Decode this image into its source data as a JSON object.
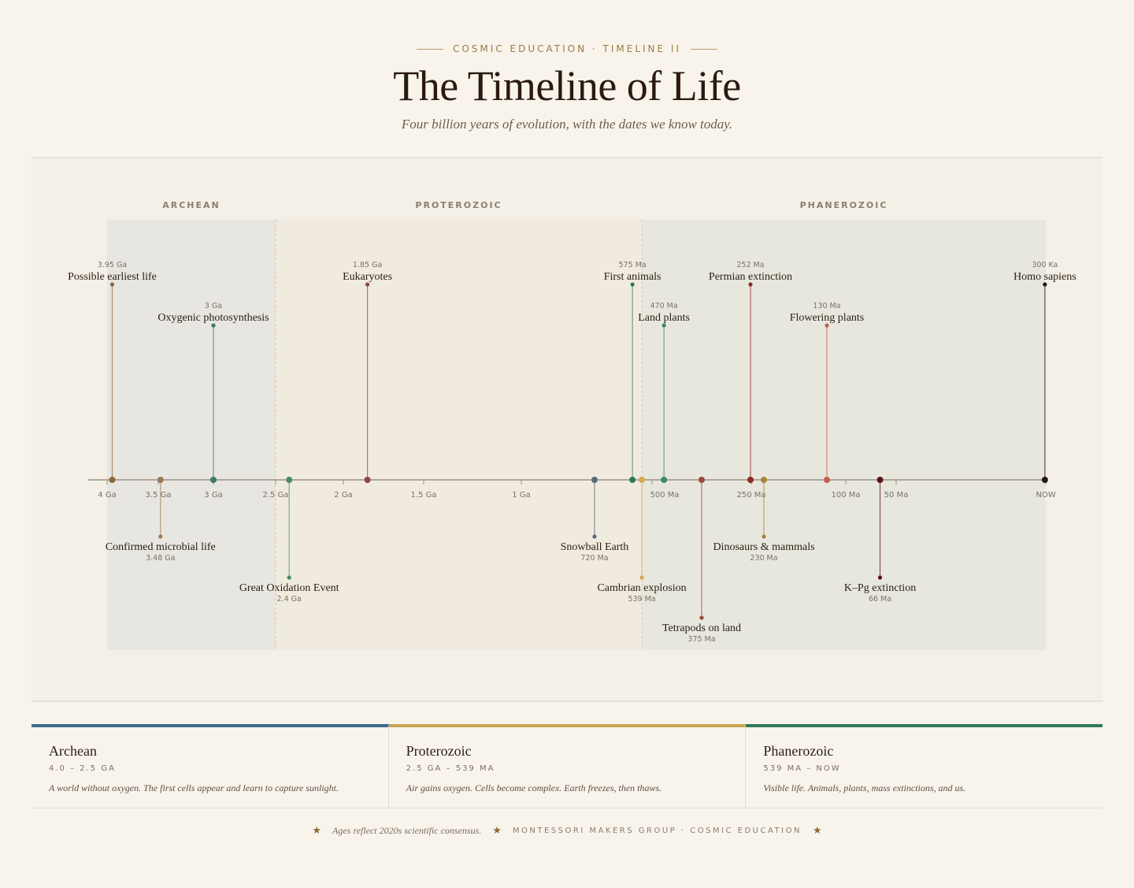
{
  "header": {
    "eyebrow": "COSMIC EDUCATION · TIMELINE II",
    "title": "The Timeline of Life",
    "subtitle": "Four billion years of evolution, with the dates we know today."
  },
  "chart_data": {
    "type": "timeline",
    "axis": {
      "unit": "years before present",
      "piecewise_scale": "4.0 Ga to 0.8 Ga linear; 0.8 Ga to 0 linear (expanded)",
      "ticks": [
        {
          "label": "4 Ga",
          "age": 4000
        },
        {
          "label": "3.5 Ga",
          "age": 3500
        },
        {
          "label": "3 Ga",
          "age": 3000
        },
        {
          "label": "2.5 Ga",
          "age": 2500
        },
        {
          "label": "2 Ga",
          "age": 2000
        },
        {
          "label": "1.5 Ga",
          "age": 1500
        },
        {
          "label": "1 Ga",
          "age": 1000
        },
        {
          "label": "500 Ma",
          "age": 500
        },
        {
          "label": "250 Ma",
          "age": 250
        },
        {
          "label": "100 Ma",
          "age": 100
        },
        {
          "label": "50 Ma",
          "age": 50
        },
        {
          "label": "NOW",
          "age": 0
        }
      ]
    },
    "eras": [
      {
        "name": "ARCHEAN",
        "from": 4000,
        "to": 2500,
        "color": "#e8e6e0"
      },
      {
        "name": "PROTEROZOIC",
        "from": 2500,
        "to": 539,
        "color": "#f1ebdf"
      },
      {
        "name": "PHANEROZOIC",
        "from": 539,
        "to": 0,
        "color": "#e8e7de"
      }
    ],
    "events": [
      {
        "name": "Possible earliest life",
        "date": "3.95 Ga",
        "age": 3950,
        "side": "above",
        "tier": 0,
        "color": "#8a6a3a"
      },
      {
        "name": "Confirmed microbial life",
        "date": "3.48 Ga",
        "age": 3480,
        "side": "below",
        "tier": 0,
        "color": "#9a7a56"
      },
      {
        "name": "Oxygenic photosynthesis",
        "date": "3 Ga",
        "age": 3000,
        "side": "above",
        "tier": 1,
        "color": "#3e7a60"
      },
      {
        "name": "Great Oxidation Event",
        "date": "2.4 Ga",
        "age": 2400,
        "side": "below",
        "tier": 1,
        "color": "#4a8a64"
      },
      {
        "name": "Eukaryotes",
        "date": "1.85 Ga",
        "age": 1850,
        "side": "above",
        "tier": 0,
        "color": "#8a4a3a"
      },
      {
        "name": "Snowball Earth",
        "date": "720 Ma",
        "age": 720,
        "side": "below",
        "tier": 0,
        "color": "#5a6a7e"
      },
      {
        "name": "First animals",
        "date": "575 Ma",
        "age": 575,
        "side": "above",
        "tier": 0,
        "color": "#2e7a58"
      },
      {
        "name": "Cambrian explosion",
        "date": "539 Ma",
        "age": 539,
        "side": "below",
        "tier": 1,
        "color": "#d4a850"
      },
      {
        "name": "Land plants",
        "date": "470 Ma",
        "age": 470,
        "side": "above",
        "tier": 1,
        "color": "#3e8a62"
      },
      {
        "name": "Tetrapods on land",
        "date": "375 Ma",
        "age": 375,
        "side": "below",
        "tier": 2,
        "color": "#9a4a40"
      },
      {
        "name": "Permian extinction",
        "date": "252 Ma",
        "age": 252,
        "side": "above",
        "tier": 0,
        "color": "#8a2a24"
      },
      {
        "name": "Dinosaurs & mammals",
        "date": "230 Ma",
        "age": 230,
        "side": "below",
        "tier": 0,
        "color": "#a8843a"
      },
      {
        "name": "Flowering plants",
        "date": "130 Ma",
        "age": 130,
        "side": "above",
        "tier": 1,
        "color": "#c4604e"
      },
      {
        "name": "K–Pg extinction",
        "date": "66 Ma",
        "age": 66,
        "side": "below",
        "tier": 1,
        "color": "#5a1412"
      },
      {
        "name": "Homo sapiens",
        "date": "300 Ka",
        "age": 0.3,
        "side": "above",
        "tier": 0,
        "color": "#2a1a10"
      }
    ]
  },
  "era_cards": [
    {
      "name": "Archean",
      "range": "4.0 – 2.5 GA",
      "desc": "A world without oxygen. The first cells appear and learn to capture sunlight.",
      "color": "#3e6a8e"
    },
    {
      "name": "Proterozoic",
      "range": "2.5 GA – 539 MA",
      "desc": "Air gains oxygen. Cells become complex. Earth freezes, then thaws.",
      "color": "#c8a250"
    },
    {
      "name": "Phanerozoic",
      "range": "539 MA – NOW",
      "desc": "Visible life. Animals, plants, mass extinctions, and us.",
      "color": "#2e7a58"
    }
  ],
  "footer": {
    "note": "Ages reflect 2020s scientific consensus.",
    "org": "MONTESSORI MAKERS GROUP · COSMIC EDUCATION",
    "star": "★"
  }
}
